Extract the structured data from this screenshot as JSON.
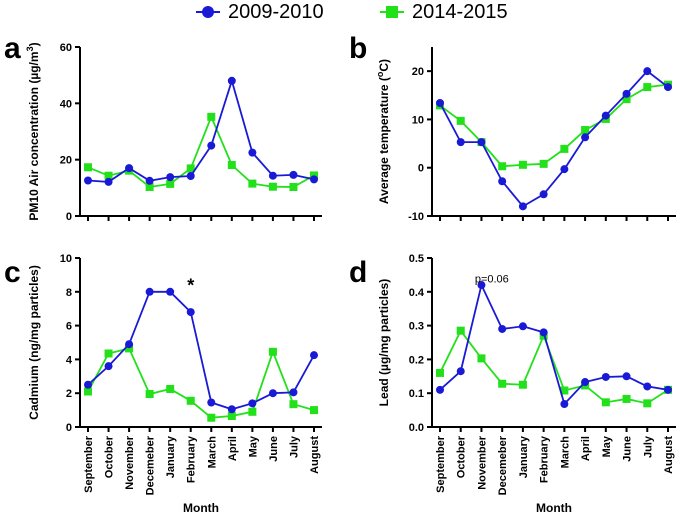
{
  "legend": [
    {
      "name": "2009-2010",
      "color": "#1a1ad6",
      "marker": "circle"
    },
    {
      "name": "2014-2015",
      "color": "#22e01a",
      "marker": "square"
    }
  ],
  "chart_data": [
    {
      "type": "line",
      "panel": "a",
      "ylabel": "PM10 Air concentration (µg/m",
      "ylabel_sup": "3",
      "ylabel_close": ")",
      "xlabel": "",
      "ylim": [
        0,
        60
      ],
      "yticks": [
        0,
        20,
        40,
        60
      ],
      "categories": [
        "September",
        "October",
        "November",
        "Decemeber",
        "January",
        "February",
        "March",
        "April",
        "May",
        "June",
        "July",
        "August"
      ],
      "show_xticklabels": false,
      "series": [
        {
          "name": "2009-2010",
          "values": [
            12.6,
            12.1,
            17.0,
            12.5,
            13.8,
            14.2,
            25.0,
            48.0,
            22.5,
            14.3,
            14.6,
            13.0
          ]
        },
        {
          "name": "2014-2015",
          "values": [
            17.3,
            14.3,
            16.1,
            10.3,
            11.4,
            16.9,
            35.2,
            18.1,
            11.5,
            10.4,
            10.3,
            14.4
          ]
        }
      ],
      "annotations": []
    },
    {
      "type": "line",
      "panel": "b",
      "ylabel": "Average temperature (",
      "ylabel_sup": "o",
      "ylabel_close": "C)",
      "xlabel": "",
      "ylim": [
        -10,
        25
      ],
      "yticks": [
        -10,
        0,
        10,
        20
      ],
      "categories": [
        "September",
        "October",
        "November",
        "Decemeber",
        "January",
        "February",
        "March",
        "April",
        "May",
        "June",
        "July",
        "August"
      ],
      "show_xticklabels": false,
      "series": [
        {
          "name": "2009-2010",
          "values": [
            13.4,
            5.3,
            5.3,
            -2.8,
            -8.0,
            -5.5,
            -0.3,
            6.3,
            10.8,
            15.3,
            20.0,
            16.7
          ]
        },
        {
          "name": "2014-2015",
          "values": [
            12.9,
            9.7,
            5.3,
            0.3,
            0.6,
            0.8,
            3.9,
            7.8,
            10.1,
            14.2,
            16.7,
            17.2
          ]
        }
      ],
      "annotations": []
    },
    {
      "type": "line",
      "panel": "c",
      "ylabel": "Cadmium (ng/mg particles)",
      "ylabel_sup": "",
      "ylabel_close": "",
      "xlabel": "Month",
      "ylim": [
        0,
        10
      ],
      "yticks": [
        0,
        2,
        4,
        6,
        8,
        10
      ],
      "categories": [
        "September",
        "October",
        "November",
        "Decemeber",
        "January",
        "February",
        "March",
        "April",
        "May",
        "June",
        "July",
        "August"
      ],
      "show_xticklabels": true,
      "series": [
        {
          "name": "2009-2010",
          "values": [
            2.5,
            3.6,
            4.9,
            8.0,
            8.0,
            6.8,
            1.45,
            1.05,
            1.4,
            2.0,
            2.05,
            4.25
          ]
        },
        {
          "name": "2014-2015",
          "values": [
            2.1,
            4.35,
            4.65,
            1.95,
            2.25,
            1.55,
            0.55,
            0.65,
            0.9,
            4.45,
            1.35,
            1.0
          ]
        }
      ],
      "annotations": [
        {
          "text": "*",
          "category_index": 5,
          "y": 8.6
        }
      ]
    },
    {
      "type": "line",
      "panel": "d",
      "ylabel": "Lead (µg/mg particles)",
      "ylabel_sup": "",
      "ylabel_close": "",
      "xlabel": "Month",
      "ylim": [
        0,
        0.5
      ],
      "yticks": [
        0.0,
        0.1,
        0.2,
        0.3,
        0.4,
        0.5
      ],
      "categories": [
        "September",
        "October",
        "November",
        "Decemeber",
        "January",
        "February",
        "March",
        "April",
        "May",
        "June",
        "July",
        "August"
      ],
      "show_xticklabels": true,
      "series": [
        {
          "name": "2009-2010",
          "values": [
            0.11,
            0.165,
            0.42,
            0.29,
            0.298,
            0.28,
            0.068,
            0.133,
            0.148,
            0.15,
            0.12,
            0.11
          ]
        },
        {
          "name": "2014-2015",
          "values": [
            0.16,
            0.285,
            0.203,
            0.128,
            0.125,
            0.27,
            0.108,
            0.123,
            0.073,
            0.083,
            0.07,
            0.11
          ]
        }
      ],
      "annotations": [
        {
          "text": "p=0.06",
          "category_index": 2.5,
          "y": 0.44
        }
      ]
    }
  ]
}
